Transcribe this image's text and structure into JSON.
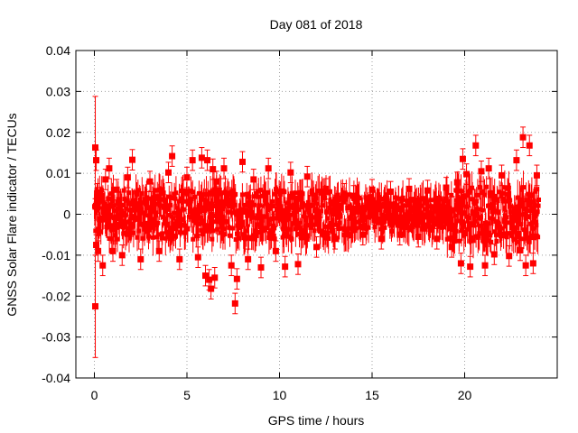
{
  "chart_data": {
    "type": "scatter",
    "title": "Day 081 of 2018",
    "xlabel": "GPS time / hours",
    "ylabel": "GNSS Solar Flare indicator / TECUs",
    "xlim": [
      -1,
      25
    ],
    "ylim": [
      -0.04,
      0.04
    ],
    "xticks": [
      0,
      5,
      10,
      15,
      20
    ],
    "xtick_labels": [
      "0",
      "5",
      "10",
      "15",
      "20"
    ],
    "yticks": [
      -0.04,
      -0.03,
      -0.02,
      -0.01,
      0,
      0.01,
      0.02,
      0.03,
      0.04
    ],
    "ytick_labels": [
      "-0.04",
      "-0.03",
      "-0.02",
      "-0.01",
      "0",
      "0.01",
      "0.02",
      "0.03",
      "0.04"
    ],
    "grid": true,
    "marker_color": "#ff0000",
    "series": [
      {
        "x": [
          0.05,
          0.05,
          0.1,
          0.1,
          0.15,
          0.2,
          0.3,
          0.45,
          0.6,
          0.8,
          1.0,
          1.2,
          1.5,
          1.8,
          2.05,
          2.5,
          3.0,
          3.5,
          4.0,
          4.2,
          4.6,
          5.0,
          5.3,
          5.6,
          5.8,
          6.0,
          6.1,
          6.2,
          6.3,
          6.4,
          6.5,
          6.6,
          7.0,
          7.4,
          7.6,
          7.7,
          8.0,
          8.3,
          8.6,
          9.0,
          9.4,
          9.8,
          10.3,
          10.6,
          11.0,
          11.5,
          12.0,
          12.5,
          13.0,
          13.5,
          14.0,
          14.5,
          15.0,
          15.5,
          16.0,
          16.5,
          17.0,
          17.5,
          18.0,
          18.5,
          19.0,
          19.3,
          19.6,
          19.8,
          19.9,
          20.1,
          20.3,
          20.6,
          20.9,
          21.1,
          21.3,
          21.6,
          22.0,
          22.4,
          22.8,
          23.0,
          23.15,
          23.3,
          23.5,
          23.7,
          23.9
        ],
        "y": [
          -0.0225,
          0.0163,
          0.0132,
          -0.0075,
          0.005,
          -0.009,
          0.004,
          -0.0125,
          0.0085,
          0.0112,
          -0.009,
          0.006,
          -0.01,
          0.009,
          0.0133,
          -0.011,
          0.008,
          -0.009,
          0.0102,
          0.0142,
          -0.011,
          0.009,
          0.0132,
          -0.0105,
          0.0138,
          -0.015,
          0.0132,
          -0.016,
          -0.0182,
          0.011,
          -0.0155,
          0.008,
          0.0112,
          -0.0125,
          -0.0218,
          -0.0158,
          0.0128,
          -0.011,
          0.0085,
          -0.013,
          0.0112,
          -0.009,
          -0.0128,
          0.0102,
          -0.0122,
          0.0092,
          -0.008,
          0.0062,
          -0.006,
          0.005,
          0.0045,
          -0.005,
          0.006,
          -0.006,
          0.0055,
          -0.005,
          0.0062,
          -0.0055,
          0.0058,
          -0.006,
          0.0065,
          -0.008,
          0.0078,
          -0.012,
          0.0135,
          0.0098,
          -0.0128,
          0.0168,
          0.0105,
          -0.0125,
          0.0112,
          -0.0098,
          0.0095,
          -0.0102,
          0.0132,
          -0.0088,
          0.0188,
          -0.0125,
          0.0168,
          -0.012,
          0.0095
        ]
      }
    ]
  }
}
